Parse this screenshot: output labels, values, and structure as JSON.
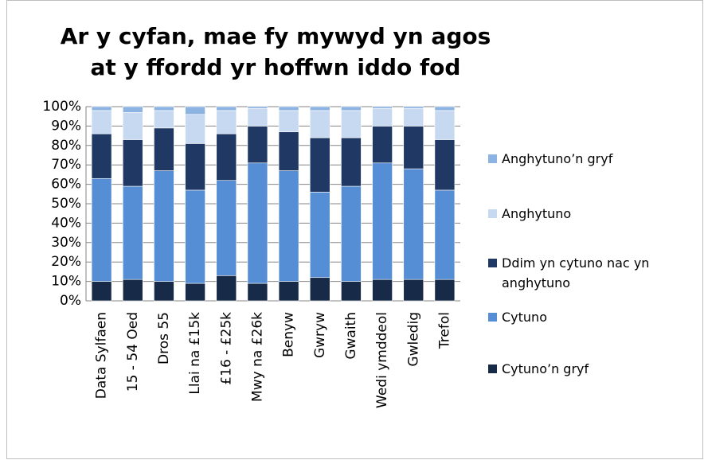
{
  "chart_data": {
    "type": "stacked-bar",
    "title": [
      "Ar y cyfan, mae fy mywyd yn agos",
      "at y ffordd yr hoffwn iddo fod"
    ],
    "categories": [
      "Data Sylfaen",
      "15 - 54 Oed",
      "Dros 55",
      "Llai na £15k",
      "£16 - £25k",
      "Mwy na £26k",
      "Benyw",
      "Gwryw",
      "Gwaith",
      "Wedi ymddeol",
      "Gwledig",
      "Trefol"
    ],
    "series": [
      {
        "name": "Cytuno’n gryf",
        "color": "#172a48",
        "values": [
          10,
          11,
          10,
          9,
          13,
          9,
          10,
          12,
          10,
          11,
          11,
          11
        ]
      },
      {
        "name": "Cytuno",
        "color": "#558ed5",
        "values": [
          53,
          48,
          57,
          48,
          49,
          62,
          57,
          44,
          49,
          60,
          57,
          46
        ]
      },
      {
        "name": "Ddim yn cytuno nac yn anghytuno",
        "color": "#1f3864",
        "values": [
          23,
          24,
          22,
          24,
          24,
          19,
          20,
          28,
          25,
          19,
          22,
          26
        ]
      },
      {
        "name": "Anghytuno",
        "color": "#c6d9f1",
        "values": [
          12,
          14,
          9,
          15,
          12,
          9,
          11,
          14,
          14,
          9,
          9,
          15
        ]
      },
      {
        "name": "Anghytuno’n gryf",
        "color": "#8db3e2",
        "values": [
          2,
          3,
          2,
          4,
          2,
          1,
          2,
          2,
          2,
          1,
          1,
          2
        ]
      }
    ],
    "ylim": [
      0,
      100
    ],
    "yticks": [
      {
        "value": 0,
        "label": "0%"
      },
      {
        "value": 10,
        "label": "10%"
      },
      {
        "value": 20,
        "label": "20%"
      },
      {
        "value": 30,
        "label": "30%"
      },
      {
        "value": 40,
        "label": "40%"
      },
      {
        "value": 50,
        "label": "50%"
      },
      {
        "value": 60,
        "label": "60%"
      },
      {
        "value": 70,
        "label": "70%"
      },
      {
        "value": 80,
        "label": "80%"
      },
      {
        "value": 90,
        "label": "90%"
      },
      {
        "value": 100,
        "label": "100%"
      }
    ],
    "grid": true,
    "legend": "right"
  }
}
